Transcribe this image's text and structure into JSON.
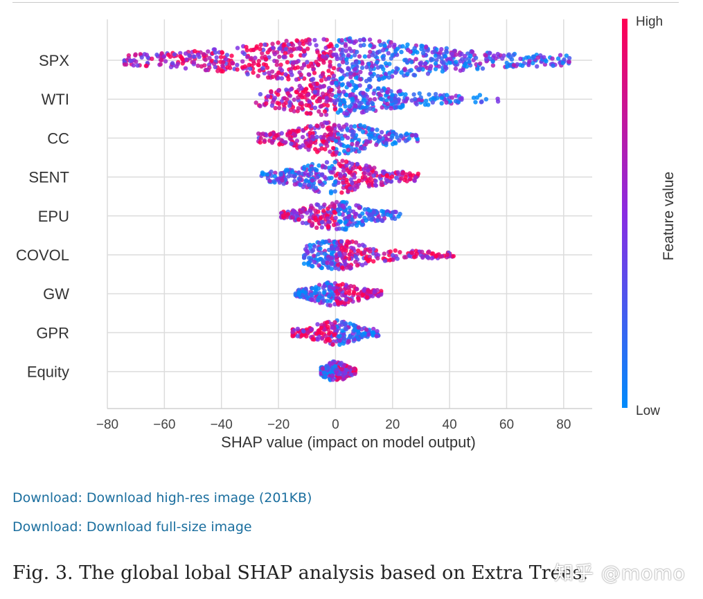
{
  "chart_data": {
    "type": "scatter",
    "subtype": "shap-beeswarm",
    "xlabel": "SHAP value (impact on model output)",
    "xlim": [
      -80,
      90
    ],
    "xticks": [
      -80,
      -60,
      -40,
      -20,
      0,
      20,
      40,
      60,
      80
    ],
    "xtick_labels": [
      "−80",
      "−60",
      "−40",
      "−20",
      "0",
      "20",
      "40",
      "60",
      "80"
    ],
    "grid": true,
    "features": [
      {
        "name": "SPX",
        "range": [
          -74,
          82
        ],
        "low_side": "right",
        "spread": 1.0
      },
      {
        "name": "WTI",
        "range": [
          -28,
          57
        ],
        "low_side": "right",
        "spread": 0.7
      },
      {
        "name": "CC",
        "range": [
          -27,
          29
        ],
        "low_side": "right",
        "spread": 0.7
      },
      {
        "name": "SENT",
        "range": [
          -26,
          29
        ],
        "low_side": "left",
        "spread": 0.7
      },
      {
        "name": "EPU",
        "range": [
          -19,
          23
        ],
        "low_side": "right",
        "spread": 0.6
      },
      {
        "name": "COVOL",
        "range": [
          -11,
          42
        ],
        "low_side": "left",
        "spread": 0.6
      },
      {
        "name": "GW",
        "range": [
          -14,
          16
        ],
        "low_side": "left",
        "spread": 0.45
      },
      {
        "name": "GPR",
        "range": [
          -15,
          15
        ],
        "low_side": "right",
        "spread": 0.45
      },
      {
        "name": "Equity",
        "range": [
          -5,
          7
        ],
        "low_side": "left",
        "spread": 0.35
      }
    ],
    "colorbar": {
      "label": "Feature value",
      "high_label": "High",
      "low_label": "Low",
      "high_color": "#ff0052",
      "mid_color": "#8a2be2",
      "low_color": "#008bfb"
    }
  },
  "links": [
    "Download: Download high-res image (201KB)",
    "Download: Download full-size image"
  ],
  "caption": "Fig. 3. The global lobal SHAP analysis based on Extra Trees.",
  "watermark": "知乎 @momo"
}
